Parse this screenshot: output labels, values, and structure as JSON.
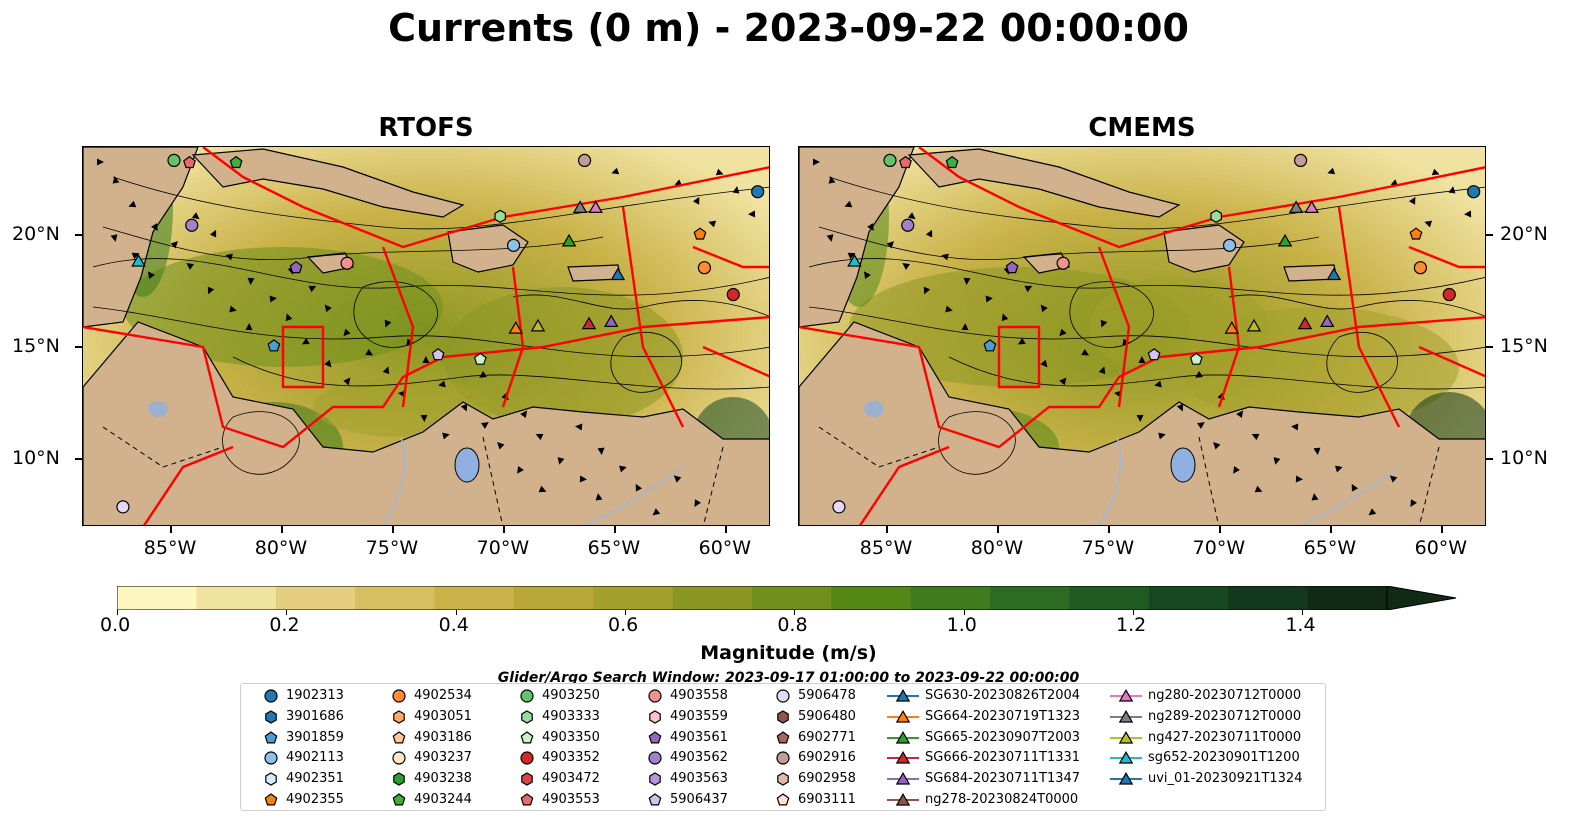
{
  "title": "Currents (0 m) - 2023-09-22 00:00:00",
  "panels": [
    {
      "title": "RTOFS"
    },
    {
      "title": "CMEMS"
    }
  ],
  "map_extent": {
    "lon_min": -89,
    "lon_max": -58,
    "lat_min": 7,
    "lat_max": 24
  },
  "lon_ticks": [
    "85°W",
    "80°W",
    "75°W",
    "70°W",
    "65°W",
    "60°W"
  ],
  "lon_tick_values": [
    -85,
    -80,
    -75,
    -70,
    -65,
    -60
  ],
  "lat_ticks": [
    "20°N",
    "15°N",
    "10°N"
  ],
  "lat_tick_values": [
    20,
    15,
    10
  ],
  "colorbar": {
    "label": "Magnitude (m/s)",
    "ticks": [
      "0.0",
      "0.2",
      "0.4",
      "0.6",
      "0.8",
      "1.0",
      "1.2",
      "1.4"
    ],
    "tick_values": [
      0.0,
      0.2,
      0.4,
      0.6,
      0.8,
      1.0,
      1.2,
      1.4
    ],
    "min": 0.0,
    "max": 1.5,
    "extend": "max",
    "colors": [
      "#fdf6c0",
      "#f0e2a0",
      "#e3cf7f",
      "#d6bf61",
      "#c9b248",
      "#b8a839",
      "#a3a02c",
      "#8c9722",
      "#70901b",
      "#558716",
      "#3d7b1d",
      "#2c6b22",
      "#1f5a22",
      "#174820",
      "#13381b",
      "#102a15"
    ]
  },
  "search_window": "Glider/Argo Search Window: 2023-09-17 01:00:00 to 2023-09-22 00:00:00",
  "colors": {
    "land": "#d1b28c",
    "eez": "#ff0000",
    "water_body": "#8fb0e0",
    "river": "#9fb8d8",
    "coast": "#000000"
  },
  "legend": {
    "columns": [
      [
        {
          "label": "1902313",
          "marker": "circle",
          "color": "#1f77b4"
        },
        {
          "label": "3901686",
          "marker": "hexagon",
          "color": "#1f77b4"
        },
        {
          "label": "3901859",
          "marker": "pentagon",
          "color": "#4c9fd6"
        },
        {
          "label": "4902113",
          "marker": "circle",
          "color": "#8ec1e8"
        },
        {
          "label": "4902351",
          "marker": "hexagon",
          "color": "#d8ebf8"
        },
        {
          "label": "4902355",
          "marker": "pentagon",
          "color": "#ff7f0e"
        }
      ],
      [
        {
          "label": "4902534",
          "marker": "circle",
          "color": "#ff8c33"
        },
        {
          "label": "4903051",
          "marker": "hexagon",
          "color": "#ffaa66"
        },
        {
          "label": "4903186",
          "marker": "pentagon",
          "color": "#ffc899"
        },
        {
          "label": "4903237",
          "marker": "circle",
          "color": "#ffe6cc"
        },
        {
          "label": "4903238",
          "marker": "hexagon",
          "color": "#2ca02c"
        },
        {
          "label": "4903244",
          "marker": "pentagon",
          "color": "#3cb03c"
        }
      ],
      [
        {
          "label": "4903250",
          "marker": "circle",
          "color": "#66c266"
        },
        {
          "label": "4903333",
          "marker": "hexagon",
          "color": "#99dd99"
        },
        {
          "label": "4903350",
          "marker": "pentagon",
          "color": "#ccf0cc"
        },
        {
          "label": "4903352",
          "marker": "circle",
          "color": "#d62728"
        },
        {
          "label": "4903472",
          "marker": "hexagon",
          "color": "#dc4445"
        },
        {
          "label": "4903553",
          "marker": "pentagon",
          "color": "#e86a6b"
        }
      ],
      [
        {
          "label": "4903558",
          "marker": "circle",
          "color": "#f09090"
        },
        {
          "label": "4903559",
          "marker": "hexagon",
          "color": "#f8c4c4"
        },
        {
          "label": "4903561",
          "marker": "pentagon",
          "color": "#9467bd"
        },
        {
          "label": "4903562",
          "marker": "circle",
          "color": "#a47fcc"
        },
        {
          "label": "4903563",
          "marker": "hexagon",
          "color": "#b497d9"
        },
        {
          "label": "5906437",
          "marker": "pentagon",
          "color": "#d4c2ec"
        }
      ],
      [
        {
          "label": "5906478",
          "marker": "circle",
          "color": "#e8d8f8"
        },
        {
          "label": "5906480",
          "marker": "hexagon",
          "color": "#8c564b"
        },
        {
          "label": "6902771",
          "marker": "pentagon",
          "color": "#a06a5e"
        },
        {
          "label": "6902916",
          "marker": "circle",
          "color": "#c49c94"
        },
        {
          "label": "6902958",
          "marker": "hexagon",
          "color": "#e0b8a8"
        },
        {
          "label": "6903111",
          "marker": "pentagon",
          "color": "#fde0d0"
        }
      ],
      [
        {
          "label": "SG630-20230826T2004",
          "marker": "triangle",
          "color": "#1f77b4"
        },
        {
          "label": "SG664-20230719T1323",
          "marker": "triangle",
          "color": "#ff7f0e"
        },
        {
          "label": "SG665-20230907T2003",
          "marker": "triangle",
          "color": "#2ca02c"
        },
        {
          "label": "SG666-20230711T1331",
          "marker": "triangle",
          "color": "#d62728"
        },
        {
          "label": "SG684-20230711T1347",
          "marker": "triangle",
          "color": "#9467bd"
        },
        {
          "label": "ng278-20230824T0000",
          "marker": "triangle",
          "color": "#8c564b"
        }
      ],
      [
        {
          "label": "ng280-20230712T0000",
          "marker": "triangle",
          "color": "#e377c2"
        },
        {
          "label": "ng289-20230712T0000",
          "marker": "triangle",
          "color": "#7f7f7f"
        },
        {
          "label": "ng427-20230711T0000",
          "marker": "triangle",
          "color": "#bcbd22"
        },
        {
          "label": "sg652-20230901T1200",
          "marker": "triangle",
          "color": "#17becf"
        },
        {
          "label": "uvi_01-20230921T1324",
          "marker": "triangle",
          "color": "#1f77b4"
        }
      ]
    ]
  },
  "platforms": [
    {
      "id": "1902313",
      "lon": -58.6,
      "lat": 22.0
    },
    {
      "id": "4902113",
      "lon": -69.6,
      "lat": 19.6
    },
    {
      "id": "4902355",
      "lon": -61.2,
      "lat": 20.1
    },
    {
      "id": "4902534",
      "lon": -61.0,
      "lat": 18.6
    },
    {
      "id": "4903250",
      "lon": -84.9,
      "lat": 23.4
    },
    {
      "id": "4903244",
      "lon": -82.1,
      "lat": 23.3
    },
    {
      "id": "4903333",
      "lon": -70.2,
      "lat": 20.9
    },
    {
      "id": "4903352",
      "lon": -59.7,
      "lat": 17.4
    },
    {
      "id": "4903553",
      "lon": -84.2,
      "lat": 23.3
    },
    {
      "id": "4903558",
      "lon": -77.1,
      "lat": 18.8
    },
    {
      "id": "4903561",
      "lon": -79.4,
      "lat": 18.6
    },
    {
      "id": "4903562",
      "lon": -84.1,
      "lat": 20.5
    },
    {
      "id": "5906437",
      "lon": -73.0,
      "lat": 14.7
    },
    {
      "id": "5906478",
      "lon": -87.2,
      "lat": 7.9
    },
    {
      "id": "6902916",
      "lon": -66.4,
      "lat": 23.4
    },
    {
      "id": "3901859",
      "lon": -80.4,
      "lat": 15.1
    },
    {
      "id": "4903350",
      "lon": -71.1,
      "lat": 14.5
    },
    {
      "id": "SG630-20230826T2004",
      "lon": -64.9,
      "lat": 18.3
    },
    {
      "id": "SG664-20230719T1323",
      "lon": -69.5,
      "lat": 15.9
    },
    {
      "id": "SG665-20230907T2003",
      "lon": -67.1,
      "lat": 19.8
    },
    {
      "id": "SG666-20230711T1331",
      "lon": -66.2,
      "lat": 16.1
    },
    {
      "id": "SG684-20230711T1347",
      "lon": -65.2,
      "lat": 16.2
    },
    {
      "id": "ng289-20230712T0000",
      "lon": -66.6,
      "lat": 21.3
    },
    {
      "id": "ng280-20230712T0000",
      "lon": -65.9,
      "lat": 21.3
    },
    {
      "id": "ng427-20230711T0000",
      "lon": -68.5,
      "lat": 16.0
    },
    {
      "id": "sg652-20230901T1200",
      "lon": -86.5,
      "lat": 18.9
    }
  ]
}
